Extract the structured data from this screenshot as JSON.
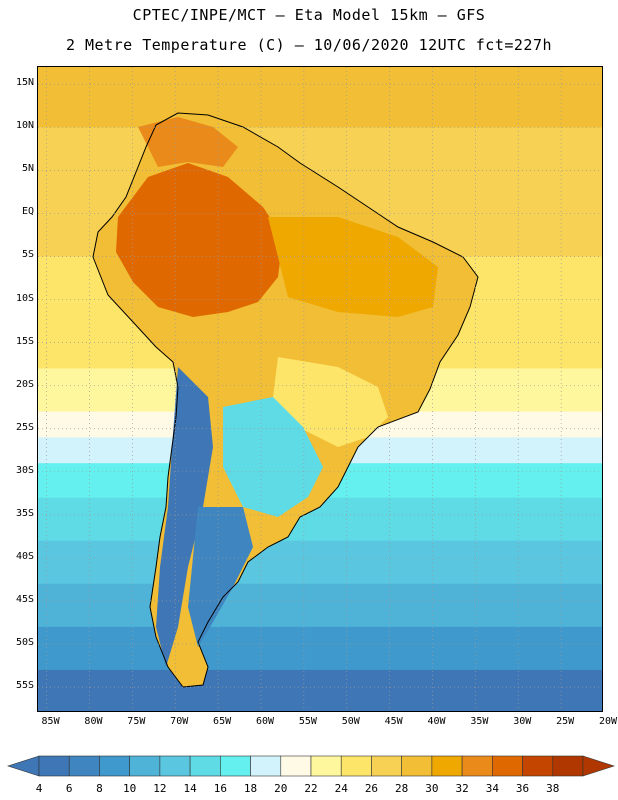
{
  "header": {
    "line1": "CPTEC/INPE/MCT –  Eta Model 15km – GFS",
    "line2": "2 Metre Temperature (C) – 10/06/2020 12UTC fct=227h"
  },
  "axes": {
    "lat_labels": [
      "15N",
      "10N",
      "5N",
      "EQ",
      "5S",
      "10S",
      "15S",
      "20S",
      "25S",
      "30S",
      "35S",
      "40S",
      "45S",
      "50S",
      "55S"
    ],
    "lat_values": [
      15,
      10,
      5,
      0,
      -5,
      -10,
      -15,
      -20,
      -25,
      -30,
      -35,
      -40,
      -45,
      -50,
      -55
    ],
    "lon_labels": [
      "85W",
      "80W",
      "75W",
      "70W",
      "65W",
      "60W",
      "55W",
      "50W",
      "45W",
      "40W",
      "35W",
      "30W",
      "25W",
      "20W"
    ],
    "lon_values": [
      -85,
      -80,
      -75,
      -70,
      -65,
      -60,
      -55,
      -50,
      -45,
      -40,
      -35,
      -30,
      -25,
      -20
    ],
    "lon_range": [
      -86,
      -20
    ],
    "lat_range": [
      -58,
      17
    ],
    "gridlines": "dotted"
  },
  "colorbar": {
    "levels": [
      "4",
      "6",
      "8",
      "10",
      "12",
      "14",
      "16",
      "18",
      "20",
      "22",
      "24",
      "26",
      "28",
      "30",
      "32",
      "34",
      "36",
      "38"
    ],
    "colors": [
      "#3e76b6",
      "#3f86c0",
      "#3f99cc",
      "#4fb3d8",
      "#5bc6df",
      "#5fdbe6",
      "#63f0ee",
      "#d2f3fb",
      "#fffae6",
      "#fff79e",
      "#fde56a",
      "#f7d154",
      "#f1be35",
      "#efa800",
      "#ea8a1a",
      "#e06800",
      "#c44500",
      "#b03800"
    ],
    "below_color": "#3e76b6",
    "above_color": "#b03800",
    "units": "C"
  },
  "map": {
    "ocean_bands": [
      {
        "lat_top": 17,
        "lat_bottom": 10,
        "color": "#f1be35"
      },
      {
        "lat_top": 10,
        "lat_bottom": -5,
        "color": "#f7d154"
      },
      {
        "lat_top": -5,
        "lat_bottom": -18,
        "color": "#fde56a"
      },
      {
        "lat_top": -18,
        "lat_bottom": -23,
        "color": "#fff79e"
      },
      {
        "lat_top": -23,
        "lat_bottom": -26,
        "color": "#fffae6"
      },
      {
        "lat_top": -26,
        "lat_bottom": -29,
        "color": "#d2f3fb"
      },
      {
        "lat_top": -29,
        "lat_bottom": -33,
        "color": "#63f0ee"
      },
      {
        "lat_top": -33,
        "lat_bottom": -38,
        "color": "#5fdbe6"
      },
      {
        "lat_top": -38,
        "lat_bottom": -43,
        "color": "#5bc6df"
      },
      {
        "lat_top": -43,
        "lat_bottom": -48,
        "color": "#4fb3d8"
      },
      {
        "lat_top": -48,
        "lat_bottom": -53,
        "color": "#3f99cc"
      },
      {
        "lat_top": -53,
        "lat_bottom": -58,
        "color": "#3e76b6"
      }
    ]
  }
}
